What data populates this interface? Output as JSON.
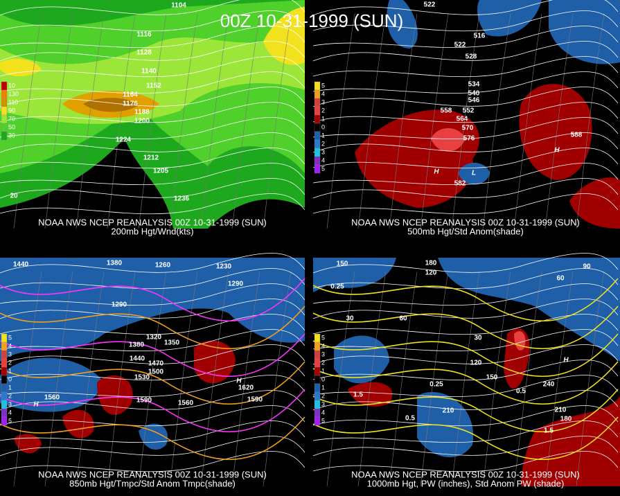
{
  "title": "00Z 10-31-1999 (SUN)",
  "panels": [
    {
      "credit": "NOAA NWS NCEP REANALYSIS 00Z 10-31-1999 (SUN)",
      "caption": "200mb Hgt/Wnd(kts)",
      "legend": [
        "10",
        "130",
        "110",
        "90",
        "70",
        "50",
        "30"
      ],
      "labels": [
        "1104",
        "1116",
        "1128",
        "1140",
        "1152",
        "1164",
        "1176",
        "1188",
        "1200",
        "1224",
        "1212",
        "1236",
        "1205",
        "20"
      ]
    },
    {
      "credit": "NOAA NWS NCEP REANALYSIS 00Z 10-31-1999 (SUN)",
      "caption": "500mb Hgt/Std Anom(shade)",
      "legend": [
        "5",
        "4",
        "3",
        "2",
        "1",
        "0",
        "1",
        "2",
        "3",
        "4",
        "5"
      ],
      "labels": [
        "522",
        "516",
        "522",
        "528",
        "534",
        "540",
        "546",
        "552",
        "558",
        "564",
        "570",
        "576",
        "582",
        "588",
        "H",
        "H",
        "L"
      ]
    },
    {
      "credit": "NOAA NWS NCEP REANALYSIS 00Z 10-31-1999 (SUN)",
      "caption": "850mb Hgt/Tmpc/Std Anom Tmpc(shade)",
      "legend": [
        "5",
        "4",
        "3",
        "2",
        "1",
        "0",
        "1",
        "2",
        "3",
        "4",
        "5"
      ],
      "labels": [
        "1440",
        "1380",
        "1260",
        "1230",
        "1290",
        "1290",
        "1320",
        "1350",
        "1380",
        "1440",
        "1470",
        "1500",
        "1530",
        "1560",
        "1590",
        "1560",
        "1590",
        "1620",
        "H",
        "H"
      ]
    },
    {
      "credit": "NOAA NWS NCEP REANALYSIS 00Z 10-31-1999 (SUN)",
      "caption": "1000mb Hgt, PW (inches), Std Anom PW (shade)",
      "legend": [
        "5",
        "4",
        "3",
        "2",
        "1",
        "0",
        "1",
        "2",
        "3",
        "4",
        "5"
      ],
      "labels": [
        "150",
        "180",
        "120",
        "90",
        "60",
        "30",
        "60",
        "30",
        "120",
        "150",
        "210",
        "240",
        "210",
        "180",
        "0.25",
        "0.25",
        "0.5",
        "0.5",
        "1.5",
        "1.5",
        "H"
      ]
    }
  ]
}
